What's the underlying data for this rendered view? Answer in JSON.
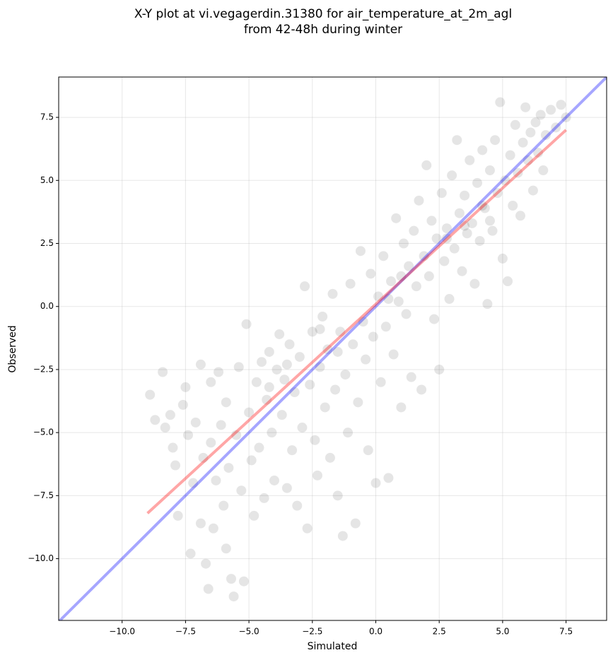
{
  "chart_data": {
    "type": "scatter",
    "title": [
      "X-Y plot at vi.vegagerdin.31380 for air_temperature_at_2m_agl",
      "from 42-48h during winter"
    ],
    "xlabel": "Simulated",
    "ylabel": "Observed",
    "xlim": [
      -12.5,
      9.1
    ],
    "ylim": [
      -12.45,
      9.1
    ],
    "xticks": [
      {
        "value": -10,
        "label": "−10.0"
      },
      {
        "value": -7.5,
        "label": "−7.5"
      },
      {
        "value": -5,
        "label": "−5.0"
      },
      {
        "value": -2.5,
        "label": "−2.5"
      },
      {
        "value": 0,
        "label": "0.0"
      },
      2.5,
      {
        "value": 5,
        "label": "5.0"
      },
      7.5
    ],
    "yticks": [
      {
        "value": -10,
        "label": "−10.0"
      },
      {
        "value": -7.5,
        "label": "−7.5"
      },
      {
        "value": -5,
        "label": "−5.0"
      },
      {
        "value": -2.5,
        "label": "−2.5"
      },
      {
        "value": 0,
        "label": "0.0"
      },
      2.5,
      {
        "value": 5,
        "label": "5.0"
      },
      7.5
    ],
    "grid": true,
    "color": "#000000",
    "x": [
      -8.9,
      -8.7,
      -8.4,
      -8.3,
      -8.1,
      -8.0,
      -7.9,
      -7.8,
      -7.6,
      -7.5,
      -7.4,
      -7.3,
      -7.2,
      -7.1,
      -6.9,
      -6.9,
      -6.8,
      -6.7,
      -6.6,
      -6.5,
      -6.5,
      -6.4,
      -6.3,
      -6.2,
      -6.1,
      -6.0,
      -5.9,
      -5.9,
      -5.8,
      -5.7,
      -5.6,
      -5.5,
      -5.4,
      -5.3,
      -5.2,
      -5.1,
      -5.0,
      -4.9,
      -4.8,
      -4.7,
      -4.6,
      -4.5,
      -4.4,
      -4.3,
      -4.2,
      -4.1,
      -4.0,
      -3.9,
      -3.8,
      -3.7,
      -3.6,
      -3.5,
      -3.4,
      -3.3,
      -3.2,
      -3.1,
      -3.0,
      -2.9,
      -2.8,
      -2.7,
      -2.6,
      -2.5,
      -2.4,
      -2.3,
      -2.2,
      -2.1,
      -2.0,
      -1.9,
      -1.8,
      -1.7,
      -1.6,
      -1.5,
      -1.4,
      -1.3,
      -1.2,
      -1.1,
      -1.0,
      -0.9,
      -0.8,
      -0.7,
      -0.6,
      -0.5,
      -0.4,
      -0.3,
      -0.2,
      -0.1,
      0.0,
      0.1,
      0.2,
      0.3,
      0.4,
      0.5,
      0.6,
      0.7,
      0.8,
      0.9,
      1.0,
      1.1,
      1.2,
      1.3,
      1.4,
      1.5,
      1.6,
      1.7,
      1.8,
      1.9,
      2.0,
      2.1,
      2.2,
      2.3,
      2.4,
      2.5,
      2.6,
      2.7,
      2.8,
      2.9,
      3.0,
      3.1,
      3.2,
      3.3,
      3.4,
      3.5,
      3.6,
      3.7,
      3.8,
      3.9,
      4.0,
      4.1,
      4.2,
      4.3,
      4.4,
      4.5,
      4.6,
      4.7,
      4.8,
      4.9,
      5.0,
      5.1,
      5.2,
      5.3,
      5.4,
      5.5,
      5.6,
      5.7,
      5.8,
      5.9,
      6.0,
      6.1,
      6.2,
      6.3,
      6.4,
      6.5,
      6.6,
      6.7,
      6.9,
      7.1,
      7.3,
      7.5,
      -1.5,
      -2.2,
      0.5,
      1.0,
      3.5,
      4.2,
      4.5,
      2.8,
      -3.5,
      -4.2
    ],
    "y": [
      -3.5,
      -4.5,
      -2.6,
      -4.8,
      -4.3,
      -5.6,
      -6.3,
      -8.3,
      -3.9,
      -3.2,
      -5.1,
      -9.8,
      -7.0,
      -4.6,
      -2.3,
      -8.6,
      -6.0,
      -10.2,
      -11.2,
      -3.0,
      -5.4,
      -8.8,
      -6.9,
      -2.6,
      -4.7,
      -7.9,
      -9.6,
      -3.8,
      -6.4,
      -10.8,
      -11.5,
      -5.1,
      -2.4,
      -7.3,
      -10.9,
      -0.7,
      -4.2,
      -6.1,
      -8.3,
      -3.0,
      -5.6,
      -2.2,
      -7.6,
      -3.7,
      -1.8,
      -5.0,
      -6.9,
      -2.5,
      -1.1,
      -4.3,
      -2.9,
      -7.2,
      -1.5,
      -5.7,
      -3.4,
      -7.9,
      -2.0,
      -4.8,
      0.8,
      -8.8,
      -3.1,
      -1.0,
      -5.3,
      -6.7,
      -2.4,
      -0.4,
      -4.0,
      -1.7,
      -6.0,
      0.5,
      -3.3,
      -7.5,
      -1.0,
      -9.1,
      -2.7,
      -5.0,
      0.9,
      -1.5,
      -8.6,
      -3.8,
      2.2,
      -0.6,
      -2.1,
      -5.7,
      1.3,
      -1.2,
      -7.0,
      0.4,
      -3.0,
      2.0,
      -0.8,
      -6.8,
      1.0,
      -1.9,
      3.5,
      0.2,
      -4.0,
      2.5,
      -0.3,
      1.6,
      -2.8,
      3.0,
      0.8,
      4.2,
      -3.3,
      2.0,
      5.6,
      1.2,
      3.4,
      -0.5,
      2.7,
      -2.5,
      4.5,
      1.8,
      3.1,
      0.3,
      5.2,
      2.3,
      6.6,
      3.7,
      1.4,
      4.4,
      2.9,
      5.8,
      3.3,
      0.9,
      4.9,
      2.6,
      6.2,
      3.9,
      0.1,
      5.4,
      3.0,
      6.6,
      4.5,
      8.1,
      1.9,
      5.0,
      1.0,
      6.0,
      4.0,
      7.2,
      5.3,
      3.6,
      6.5,
      7.9,
      5.8,
      6.9,
      4.6,
      7.3,
      6.1,
      7.6,
      5.4,
      6.8,
      7.8,
      7.1,
      8.0,
      7.5,
      -1.8,
      -0.9,
      0.3,
      1.2,
      3.2,
      4.0,
      3.4,
      2.7,
      -2.3,
      -3.2
    ],
    "lines": [
      {
        "x": [
          -12.5,
          9.1
        ],
        "y": [
          -12.5,
          9.1
        ],
        "color": "#0000ff"
      },
      {
        "x": [
          -9.0,
          7.5
        ],
        "y": [
          -8.2,
          7.0
        ],
        "color": "#ff0000"
      }
    ]
  }
}
